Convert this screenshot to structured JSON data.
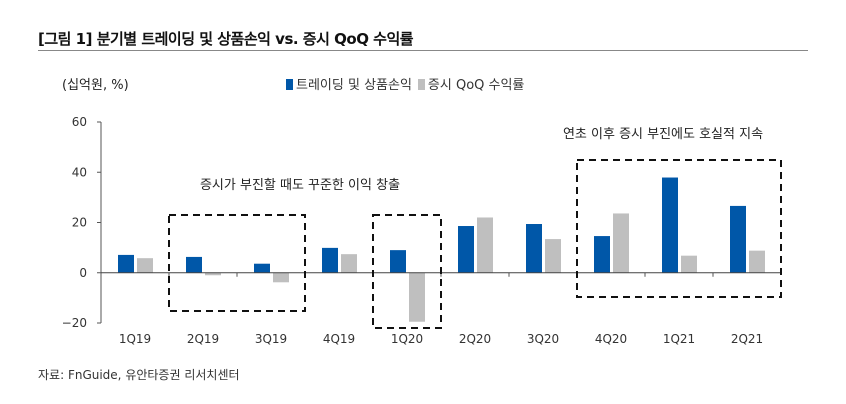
{
  "title": "[그림 1] 분기별 트레이딩 및 상품손익 vs. 증시 QoQ 수익률",
  "source": "자료: FnGuide, 유안타증권 리서치센터",
  "chart_data": {
    "type": "bar",
    "unit_label": "(십억원, %)",
    "categories": [
      "1Q19",
      "2Q19",
      "3Q19",
      "4Q19",
      "1Q20",
      "2Q20",
      "3Q20",
      "4Q20",
      "1Q21",
      "2Q21"
    ],
    "series": [
      {
        "name": "트레이딩 및 상품손익",
        "color": "#0057A8",
        "values": [
          7.1,
          6.3,
          3.6,
          9.9,
          9.0,
          18.6,
          19.4,
          14.6,
          37.9,
          26.6
        ]
      },
      {
        "name": "증시 QoQ 수익률",
        "color": "#BFBFBF",
        "values": [
          5.8,
          -1.0,
          -3.8,
          7.4,
          -19.5,
          22.0,
          13.4,
          23.6,
          6.8,
          8.8
        ]
      }
    ],
    "ylim": [
      -20,
      60
    ],
    "yticks": [
      -20,
      0,
      20,
      40,
      60
    ],
    "ytick_labels": [
      "−20",
      "0",
      "20",
      "40",
      "60"
    ],
    "legend_position": "top",
    "grid": false,
    "annotations": [
      {
        "text": "증시가 부진할 때도 꾸준한 이익 창출",
        "boxes": [
          [
            "2Q19",
            "3Q19"
          ],
          [
            "1Q20",
            "1Q20"
          ]
        ]
      },
      {
        "text": "연초 이후 증시 부진에도 호실적 지속",
        "boxes": [
          [
            "4Q20",
            "2Q21"
          ]
        ]
      }
    ]
  }
}
